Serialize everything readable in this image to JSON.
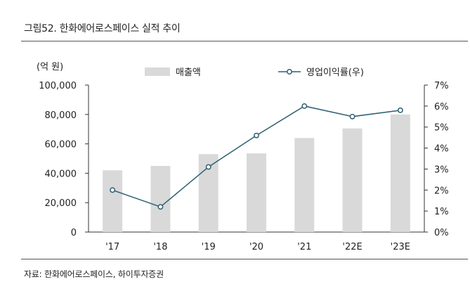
{
  "figure": {
    "title": "그림52. 한화에어로스페이스 실적 추이",
    "source": "자료: 한화에어로스페이스, 하이투자증권"
  },
  "chart_data": {
    "type": "bar+line",
    "categories": [
      "'17",
      "'18",
      "'19",
      "'20",
      "'21",
      "'22E",
      "'23E"
    ],
    "y_left": {
      "unit_label": "(억 원)",
      "range": [
        0,
        100000
      ],
      "ticks": [
        "0",
        "20,000",
        "40,000",
        "60,000",
        "80,000",
        "100,000"
      ]
    },
    "y_right": {
      "range": [
        0,
        7
      ],
      "ticks": [
        "0%",
        "1%",
        "2%",
        "3%",
        "4%",
        "5%",
        "6%",
        "7%"
      ]
    },
    "series": [
      {
        "name": "매출액",
        "type": "bar",
        "axis": "left",
        "color": "#d9d9d9",
        "values": [
          42000,
          45000,
          53000,
          53500,
          64000,
          70500,
          80000
        ]
      },
      {
        "name": "영업이익률(우)",
        "type": "line",
        "axis": "right",
        "color": "#2d5f73",
        "values": [
          2.0,
          1.2,
          3.1,
          4.6,
          6.0,
          5.5,
          5.8
        ]
      }
    ],
    "legend_position": "top",
    "grid": false
  }
}
